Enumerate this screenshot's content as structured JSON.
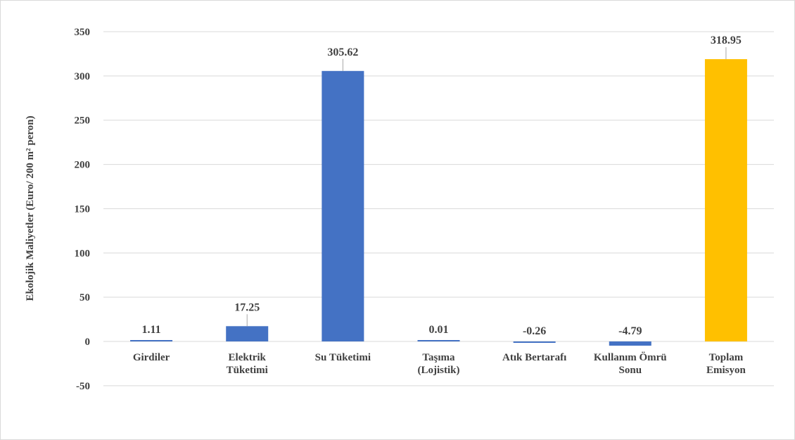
{
  "chart_data": {
    "type": "bar",
    "title": "",
    "xlabel": "",
    "ylabel": "Ekolojik Maliyetler (Euro/ 200 m² peron)",
    "ylim": [
      -50,
      350
    ],
    "yticks": [
      350,
      300,
      250,
      200,
      150,
      100,
      50,
      0,
      -50
    ],
    "grid": true,
    "categories": [
      [
        "Girdiler"
      ],
      [
        "Elektrik",
        "Tüketimi"
      ],
      [
        "Su Tüketimi"
      ],
      [
        "Taşıma",
        "(Lojistik)"
      ],
      [
        "Atık Bertarafı"
      ],
      [
        "Kullanım Ömrü",
        "Sonu"
      ],
      [
        "Toplam",
        "Emisyon"
      ]
    ],
    "values": [
      1.11,
      17.25,
      305.62,
      0.01,
      -0.26,
      -4.79,
      318.95
    ],
    "data_labels": [
      "1.11",
      "17.25",
      "305.62",
      "0.01",
      "-0.26",
      "-4.79",
      "318.95"
    ],
    "colors": [
      "#4472c4",
      "#4472c4",
      "#4472c4",
      "#4472c4",
      "#4472c4",
      "#4472c4",
      "#ffc000"
    ]
  }
}
